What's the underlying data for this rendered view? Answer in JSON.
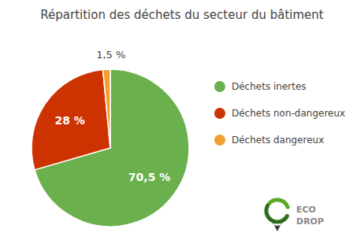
{
  "chart_data": {
    "type": "pie",
    "title": "Répartition des déchets du secteur du bâtiment",
    "categories": [
      "Déchets inertes",
      "Déchets non-dangereux",
      "Déchets dangereux"
    ],
    "values": [
      70.5,
      28.0,
      1.5
    ],
    "value_labels": [
      "70,5 %",
      "28 %",
      "1,5 %"
    ],
    "colors": [
      "#6ab04c",
      "#cc3300",
      "#f0a030"
    ],
    "data_labels": true,
    "legend": "right",
    "annotations": [
      "ECO",
      "DROP"
    ]
  }
}
